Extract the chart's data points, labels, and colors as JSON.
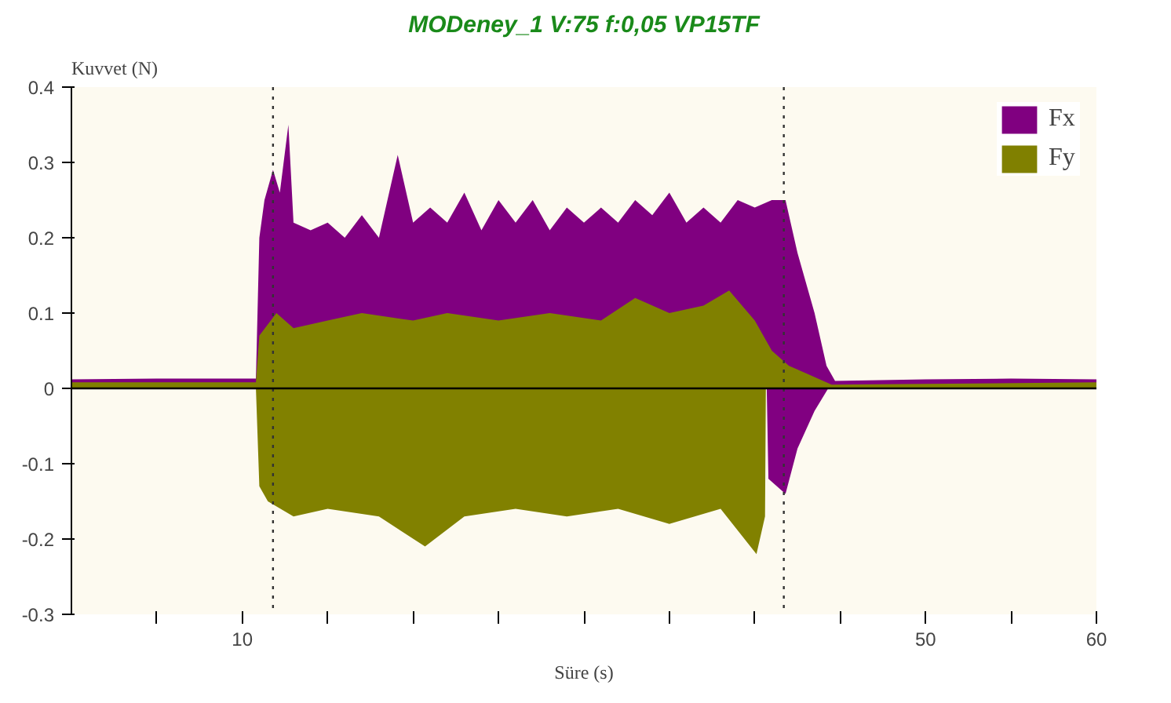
{
  "chart_data": {
    "type": "area",
    "title": "MODeney_1 V:75 f:0,05 VP15TF",
    "xlabel": "Süre (s)",
    "ylabel": "Kuvvet (N)",
    "xlim": [
      0,
      60
    ],
    "ylim": [
      -0.3,
      0.4
    ],
    "xticks": [
      {
        "value": 5,
        "label": null
      },
      {
        "value": 10,
        "label": "10"
      },
      {
        "value": 15,
        "label": null
      },
      {
        "value": 20,
        "label": null
      },
      {
        "value": 25,
        "label": null
      },
      {
        "value": 30,
        "label": null
      },
      {
        "value": 35,
        "label": null
      },
      {
        "value": 40,
        "label": null
      },
      {
        "value": 45,
        "label": null
      },
      {
        "value": 50,
        "label": "50"
      },
      {
        "value": 55,
        "label": null
      },
      {
        "value": 60,
        "label": "60"
      }
    ],
    "yticks": [
      -0.3,
      -0.2,
      -0.1,
      0,
      0.1,
      0.2,
      0.3,
      0.4
    ],
    "grid": false,
    "legend": "top right",
    "ref_lines": [
      {
        "axis": "x",
        "value": 11.8,
        "label": null,
        "color": "#333333",
        "line_style": "dotted"
      },
      {
        "axis": "x",
        "value": 41.7,
        "label": null,
        "color": "#333333",
        "line_style": "dotted"
      },
      {
        "axis": "y",
        "value": 0,
        "label": null,
        "color": "#000000",
        "line_style": "solid"
      }
    ],
    "series": [
      {
        "name": "Fx",
        "color": "#800080",
        "x": [
          0,
          5,
          10.8,
          11.0,
          11.3,
          11.8,
          12.2,
          12.7,
          13,
          14,
          15,
          16,
          17,
          18,
          19.1,
          20,
          21,
          22,
          23,
          24,
          25,
          26,
          27,
          28,
          29,
          30,
          31,
          32,
          33,
          34,
          35,
          36,
          37,
          38,
          39,
          40,
          41,
          41.8,
          42.5,
          43.5,
          44.2,
          44.7,
          50,
          55,
          60
        ],
        "values": [
          0.012,
          0.013,
          0.013,
          0.2,
          0.25,
          0.29,
          0.26,
          0.35,
          0.22,
          0.21,
          0.22,
          0.2,
          0.23,
          0.2,
          0.31,
          0.22,
          0.24,
          0.22,
          0.26,
          0.21,
          0.25,
          0.22,
          0.25,
          0.21,
          0.24,
          0.22,
          0.24,
          0.22,
          0.25,
          0.23,
          0.26,
          0.22,
          0.24,
          0.22,
          0.25,
          0.24,
          0.25,
          0.25,
          0.18,
          0.1,
          0.03,
          0.01,
          0.012,
          0.013,
          0.012
        ]
      },
      {
        "name": "Fy",
        "color": "#808000",
        "x": [
          0,
          10.8,
          11,
          12,
          13,
          15,
          17,
          20,
          22,
          25,
          28,
          31,
          33,
          35,
          37,
          38.5,
          40,
          41,
          42,
          43,
          44.5,
          60
        ],
        "values": [
          0.008,
          0.008,
          0.07,
          0.1,
          0.08,
          0.09,
          0.1,
          0.09,
          0.1,
          0.09,
          0.1,
          0.09,
          0.12,
          0.1,
          0.11,
          0.13,
          0.09,
          0.05,
          0.03,
          0.02,
          0.005,
          0.008
        ]
      },
      {
        "color": "#818100",
        "x": [
          0,
          10.8,
          11,
          11.5,
          13,
          15,
          18,
          20.7,
          23,
          26,
          29,
          32,
          35,
          38,
          40.1,
          40.6,
          40.65,
          60
        ],
        "values": [
          0,
          0,
          -0.13,
          -0.15,
          -0.17,
          -0.16,
          -0.17,
          -0.21,
          -0.17,
          -0.16,
          -0.17,
          -0.16,
          -0.18,
          -0.16,
          -0.22,
          -0.17,
          0,
          0
        ]
      },
      {
        "color": "#810081",
        "x": [
          0,
          40.7,
          40.8,
          41.8,
          42.5,
          43.5,
          44.3,
          60
        ],
        "values": [
          0,
          0,
          -0.12,
          -0.14,
          -0.08,
          -0.03,
          0,
          0
        ]
      }
    ]
  }
}
